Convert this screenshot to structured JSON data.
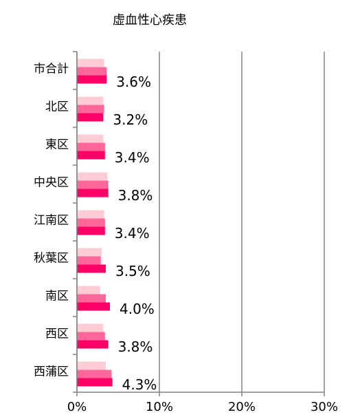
{
  "chart_data": {
    "type": "hbar",
    "title": "虚血性心疾患",
    "categories": [
      "市合計",
      "北区",
      "東区",
      "中央区",
      "江南区",
      "秋葉区",
      "南区",
      "西区",
      "西蒲区"
    ],
    "series": [
      {
        "color": "#ffccd5",
        "values": [
          3.3,
          3.2,
          3.2,
          3.7,
          3.3,
          3.0,
          2.8,
          3.2,
          3.5
        ]
      },
      {
        "color": "#ff6699",
        "values": [
          3.6,
          3.3,
          3.4,
          3.8,
          3.4,
          2.9,
          3.5,
          3.4,
          4.2
        ]
      },
      {
        "color": "#ff0066",
        "values": [
          3.6,
          3.2,
          3.4,
          3.8,
          3.4,
          3.5,
          4.0,
          3.8,
          4.3
        ],
        "value_labels": [
          "3.6%",
          "3.2%",
          "3.4%",
          "3.8%",
          "3.4%",
          "3.5%",
          "4.0%",
          "3.8%",
          "4.3%"
        ]
      }
    ],
    "xlim": [
      0,
      30
    ],
    "xticks": [
      {
        "value": 0,
        "label": "0%"
      },
      {
        "value": 10,
        "label": "10%"
      },
      {
        "value": 20,
        "label": "20%"
      },
      {
        "value": 30,
        "label": "30%"
      }
    ],
    "grid": true
  }
}
